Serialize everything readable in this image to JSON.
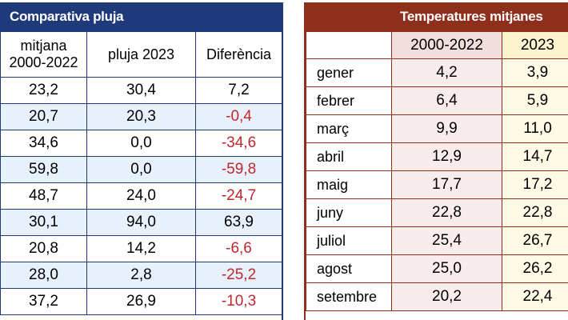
{
  "rain_table": {
    "title": "Comparativa pluja",
    "headers": {
      "avg_line1": "mitjana",
      "avg_line2": "2000-2022",
      "rain_2023": "pluja 2023",
      "difference": "Diferència"
    },
    "rows": [
      {
        "avg": "23,2",
        "rain": "30,4",
        "diff": "7,2",
        "negative": false
      },
      {
        "avg": "20,7",
        "rain": "20,3",
        "diff": "-0,4",
        "negative": true
      },
      {
        "avg": "34,6",
        "rain": "0,0",
        "diff": "-34,6",
        "negative": true
      },
      {
        "avg": "59,8",
        "rain": "0,0",
        "diff": "-59,8",
        "negative": true
      },
      {
        "avg": "48,7",
        "rain": "24,0",
        "diff": "-24,7",
        "negative": true
      },
      {
        "avg": "30,1",
        "rain": "94,0",
        "diff": "63,9",
        "negative": false
      },
      {
        "avg": "20,8",
        "rain": "14,2",
        "diff": "-6,6",
        "negative": true
      },
      {
        "avg": "28,0",
        "rain": "2,8",
        "diff": "-25,2",
        "negative": true
      },
      {
        "avg": "37,2",
        "rain": "26,9",
        "diff": "-10,3",
        "negative": true
      }
    ]
  },
  "temp_table": {
    "title": "Temperatures mitjanes",
    "headers": {
      "period_a": "2000-2022",
      "period_b": "2023"
    },
    "rows": [
      {
        "month": "gener",
        "a": "4,2",
        "b": "3,9"
      },
      {
        "month": "febrer",
        "a": "6,4",
        "b": "5,9"
      },
      {
        "month": "març",
        "a": "9,9",
        "b": "11,0"
      },
      {
        "month": "abril",
        "a": "12,9",
        "b": "14,7"
      },
      {
        "month": "maig",
        "a": "17,7",
        "b": "17,2"
      },
      {
        "month": "juny",
        "a": "22,8",
        "b": "22,8"
      },
      {
        "month": "juliol",
        "a": "25,4",
        "b": "26,7"
      },
      {
        "month": "agost",
        "a": "25,0",
        "b": "26,2"
      },
      {
        "month": "setembre",
        "a": "20,2",
        "b": "22,4"
      }
    ]
  },
  "colors": {
    "rain_header": "#1f3a7a",
    "temp_header": "#8e2f1c",
    "negative_value": "#c0272d"
  }
}
